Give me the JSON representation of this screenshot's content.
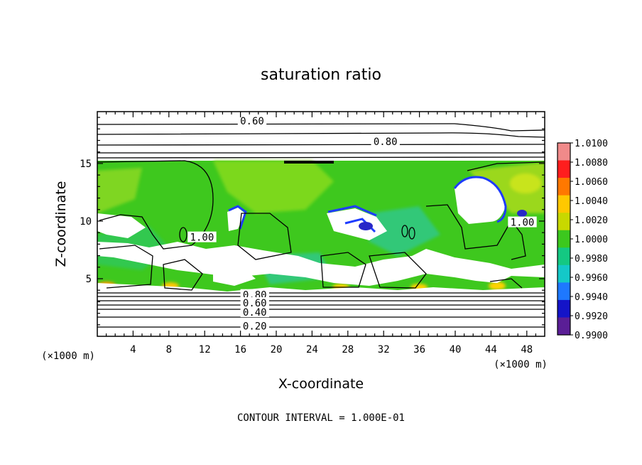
{
  "chart_data": {
    "type": "heatmap",
    "title": "saturation ratio",
    "xlabel": "X-coordinate",
    "ylabel": "Z-coordinate",
    "x_unit_label": "(×1000 m)",
    "y_unit_label": "(×1000 m)",
    "xlim": [
      0,
      50
    ],
    "ylim": [
      0,
      19.5
    ],
    "x_ticks": [
      4,
      8,
      12,
      16,
      20,
      24,
      28,
      32,
      36,
      40,
      44,
      48
    ],
    "y_ticks": [
      5,
      10,
      15
    ],
    "colorbar": {
      "levels": [
        "1.0100",
        "1.0080",
        "1.0060",
        "1.0040",
        "1.0020",
        "1.0000",
        "0.9980",
        "0.9960",
        "0.9940",
        "0.9920",
        "0.9900"
      ],
      "colors": [
        "#f08a8a",
        "#ff1e1e",
        "#ff7800",
        "#ffc800",
        "#c8d800",
        "#3cc81e",
        "#14c882",
        "#14c8c8",
        "#1e78ff",
        "#1414c8",
        "#5a1e96"
      ]
    },
    "contour_labels": [
      {
        "text": "0.60",
        "x": 17.3,
        "z": 18.7
      },
      {
        "text": "0.80",
        "x": 32.2,
        "z": 16.9
      },
      {
        "text": "1.00",
        "x": 11.7,
        "z": 8.6
      },
      {
        "text": "1.00",
        "x": 47.5,
        "z": 9.9
      },
      {
        "text": "0.80",
        "x": 17.6,
        "z": 3.6
      },
      {
        "text": "0.60",
        "x": 17.6,
        "z": 2.9
      },
      {
        "text": "0.40",
        "x": 17.6,
        "z": 2.1
      },
      {
        "text": "0.20",
        "x": 17.6,
        "z": 0.9
      }
    ],
    "annotation": "CONTOUR INTERVAL = 1.000E-01"
  }
}
